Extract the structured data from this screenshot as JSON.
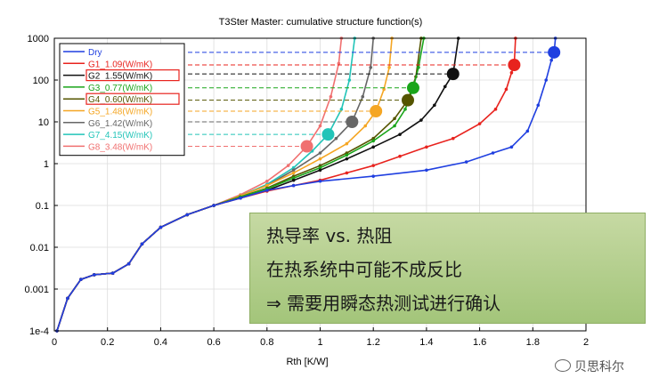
{
  "chart_data": {
    "type": "line",
    "title": "T3Ster Master: cumulative structure function(s)",
    "xlabel": "Rth  [K/W]",
    "ylabel": "",
    "xlim": [
      0,
      2
    ],
    "ylim": [
      0.0001,
      1000
    ],
    "yscale": "log",
    "x_ticks": [
      "0",
      "0.2",
      "0.4",
      "0.6",
      "0.8",
      "1",
      "1.2",
      "1.4",
      "1.6",
      "1.8",
      "2"
    ],
    "y_ticks": [
      "1e-4",
      "0.001",
      "0.01",
      "0.1",
      "1",
      "10",
      "100",
      "1000"
    ],
    "legend_placement": "top-left",
    "series": [
      {
        "name": "Dry",
        "color": "#1f3fe0",
        "marker_value": [
          1.88,
          460
        ],
        "points": [
          [
            0.01,
            0.0001
          ],
          [
            0.05,
            0.0006
          ],
          [
            0.1,
            0.0017
          ],
          [
            0.15,
            0.0022
          ],
          [
            0.22,
            0.0024
          ],
          [
            0.28,
            0.004
          ],
          [
            0.33,
            0.012
          ],
          [
            0.4,
            0.03
          ],
          [
            0.5,
            0.06
          ],
          [
            0.6,
            0.1
          ],
          [
            0.7,
            0.15
          ],
          [
            0.8,
            0.23
          ],
          [
            0.9,
            0.3
          ],
          [
            1.0,
            0.38
          ],
          [
            1.2,
            0.5
          ],
          [
            1.4,
            0.7
          ],
          [
            1.55,
            1.1
          ],
          [
            1.65,
            1.8
          ],
          [
            1.72,
            2.5
          ],
          [
            1.78,
            6
          ],
          [
            1.82,
            25
          ],
          [
            1.85,
            100
          ],
          [
            1.87,
            300
          ],
          [
            1.88,
            460
          ],
          [
            1.885,
            1000
          ]
        ]
      },
      {
        "name": "G1_1.09(W/mK)",
        "color": "#e8231e",
        "marker_value": [
          1.73,
          230
        ],
        "points": [
          [
            0.01,
            0.0001
          ],
          [
            0.05,
            0.0006
          ],
          [
            0.1,
            0.0017
          ],
          [
            0.15,
            0.0022
          ],
          [
            0.22,
            0.0024
          ],
          [
            0.28,
            0.004
          ],
          [
            0.33,
            0.012
          ],
          [
            0.4,
            0.03
          ],
          [
            0.5,
            0.06
          ],
          [
            0.6,
            0.1
          ],
          [
            0.7,
            0.15
          ],
          [
            0.8,
            0.22
          ],
          [
            0.9,
            0.3
          ],
          [
            1.0,
            0.4
          ],
          [
            1.1,
            0.6
          ],
          [
            1.2,
            0.9
          ],
          [
            1.3,
            1.5
          ],
          [
            1.4,
            2.5
          ],
          [
            1.5,
            4
          ],
          [
            1.6,
            9
          ],
          [
            1.66,
            20
          ],
          [
            1.7,
            60
          ],
          [
            1.72,
            150
          ],
          [
            1.73,
            230
          ],
          [
            1.735,
            1000
          ]
        ]
      },
      {
        "name": "G2_1.55(W/mK)",
        "color": "#111111",
        "marker_value": [
          1.5,
          140
        ],
        "points": [
          [
            0.01,
            0.0001
          ],
          [
            0.05,
            0.0006
          ],
          [
            0.1,
            0.0017
          ],
          [
            0.15,
            0.0022
          ],
          [
            0.22,
            0.0024
          ],
          [
            0.28,
            0.004
          ],
          [
            0.33,
            0.012
          ],
          [
            0.4,
            0.03
          ],
          [
            0.5,
            0.06
          ],
          [
            0.6,
            0.1
          ],
          [
            0.7,
            0.15
          ],
          [
            0.8,
            0.23
          ],
          [
            0.9,
            0.4
          ],
          [
            1.0,
            0.7
          ],
          [
            1.1,
            1.3
          ],
          [
            1.2,
            2.5
          ],
          [
            1.3,
            5
          ],
          [
            1.38,
            11
          ],
          [
            1.43,
            25
          ],
          [
            1.47,
            70
          ],
          [
            1.5,
            140
          ],
          [
            1.52,
            1000
          ]
        ]
      },
      {
        "name": "G3_0.77(W/mK)",
        "color": "#1aa51a",
        "marker_value": [
          1.35,
          65
        ],
        "points": [
          [
            0.01,
            0.0001
          ],
          [
            0.05,
            0.0006
          ],
          [
            0.1,
            0.0017
          ],
          [
            0.15,
            0.0022
          ],
          [
            0.22,
            0.0024
          ],
          [
            0.28,
            0.004
          ],
          [
            0.33,
            0.012
          ],
          [
            0.4,
            0.03
          ],
          [
            0.5,
            0.06
          ],
          [
            0.6,
            0.1
          ],
          [
            0.7,
            0.16
          ],
          [
            0.8,
            0.25
          ],
          [
            0.9,
            0.45
          ],
          [
            1.0,
            0.8
          ],
          [
            1.1,
            1.6
          ],
          [
            1.2,
            3.5
          ],
          [
            1.28,
            8
          ],
          [
            1.32,
            20
          ],
          [
            1.35,
            65
          ],
          [
            1.37,
            200
          ],
          [
            1.39,
            1000
          ]
        ]
      },
      {
        "name": "G4_0.60(W/mK)",
        "color": "#555500",
        "marker_value": [
          1.33,
          33
        ],
        "points": [
          [
            0.01,
            0.0001
          ],
          [
            0.05,
            0.0006
          ],
          [
            0.1,
            0.0017
          ],
          [
            0.15,
            0.0022
          ],
          [
            0.22,
            0.0024
          ],
          [
            0.28,
            0.004
          ],
          [
            0.33,
            0.012
          ],
          [
            0.4,
            0.03
          ],
          [
            0.5,
            0.06
          ],
          [
            0.6,
            0.1
          ],
          [
            0.7,
            0.16
          ],
          [
            0.8,
            0.26
          ],
          [
            0.9,
            0.5
          ],
          [
            1.0,
            0.9
          ],
          [
            1.1,
            1.8
          ],
          [
            1.2,
            4
          ],
          [
            1.28,
            12
          ],
          [
            1.33,
            33
          ],
          [
            1.36,
            120
          ],
          [
            1.38,
            1000
          ]
        ]
      },
      {
        "name": "G5_1.48(W/mK)",
        "color": "#f5a623",
        "marker_value": [
          1.21,
          18
        ],
        "points": [
          [
            0.01,
            0.0001
          ],
          [
            0.05,
            0.0006
          ],
          [
            0.1,
            0.0017
          ],
          [
            0.15,
            0.0022
          ],
          [
            0.22,
            0.0024
          ],
          [
            0.28,
            0.004
          ],
          [
            0.33,
            0.012
          ],
          [
            0.4,
            0.03
          ],
          [
            0.5,
            0.06
          ],
          [
            0.6,
            0.1
          ],
          [
            0.7,
            0.17
          ],
          [
            0.8,
            0.3
          ],
          [
            0.9,
            0.6
          ],
          [
            1.0,
            1.3
          ],
          [
            1.1,
            3
          ],
          [
            1.17,
            8
          ],
          [
            1.21,
            18
          ],
          [
            1.24,
            60
          ],
          [
            1.26,
            200
          ],
          [
            1.27,
            1000
          ]
        ]
      },
      {
        "name": "G6_1.42(W/mK)",
        "color": "#666666",
        "marker_value": [
          1.12,
          10
        ],
        "points": [
          [
            0.01,
            0.0001
          ],
          [
            0.05,
            0.0006
          ],
          [
            0.1,
            0.0017
          ],
          [
            0.15,
            0.0022
          ],
          [
            0.22,
            0.0024
          ],
          [
            0.28,
            0.004
          ],
          [
            0.33,
            0.012
          ],
          [
            0.4,
            0.03
          ],
          [
            0.5,
            0.06
          ],
          [
            0.6,
            0.1
          ],
          [
            0.7,
            0.17
          ],
          [
            0.8,
            0.3
          ],
          [
            0.9,
            0.7
          ],
          [
            1.0,
            1.8
          ],
          [
            1.06,
            4
          ],
          [
            1.12,
            10
          ],
          [
            1.16,
            40
          ],
          [
            1.19,
            200
          ],
          [
            1.2,
            1000
          ]
        ]
      },
      {
        "name": "G7_4.15(W/mK)",
        "color": "#22c4b8",
        "marker_value": [
          1.03,
          5
        ],
        "points": [
          [
            0.01,
            0.0001
          ],
          [
            0.05,
            0.0006
          ],
          [
            0.1,
            0.0017
          ],
          [
            0.15,
            0.0022
          ],
          [
            0.22,
            0.0024
          ],
          [
            0.28,
            0.004
          ],
          [
            0.33,
            0.012
          ],
          [
            0.4,
            0.03
          ],
          [
            0.5,
            0.06
          ],
          [
            0.6,
            0.1
          ],
          [
            0.7,
            0.17
          ],
          [
            0.8,
            0.32
          ],
          [
            0.9,
            0.8
          ],
          [
            0.97,
            2
          ],
          [
            1.03,
            5
          ],
          [
            1.08,
            20
          ],
          [
            1.11,
            100
          ],
          [
            1.13,
            1000
          ]
        ]
      },
      {
        "name": "G8_3.48(W/mK)",
        "color": "#f07070",
        "marker_value": [
          0.95,
          2.6
        ],
        "points": [
          [
            0.01,
            0.0001
          ],
          [
            0.05,
            0.0006
          ],
          [
            0.1,
            0.0017
          ],
          [
            0.15,
            0.0022
          ],
          [
            0.22,
            0.0024
          ],
          [
            0.28,
            0.004
          ],
          [
            0.33,
            0.012
          ],
          [
            0.4,
            0.03
          ],
          [
            0.5,
            0.06
          ],
          [
            0.6,
            0.1
          ],
          [
            0.7,
            0.18
          ],
          [
            0.8,
            0.38
          ],
          [
            0.88,
            0.9
          ],
          [
            0.95,
            2.6
          ],
          [
            1.0,
            8
          ],
          [
            1.04,
            40
          ],
          [
            1.07,
            250
          ],
          [
            1.08,
            1000
          ]
        ]
      }
    ],
    "boxed_legend_entries": [
      "G2_1.55(W/mK)",
      "G4_0.60(W/mK)"
    ]
  },
  "callout": {
    "line1": "热导率 vs. 热阻",
    "line2": "在热系统中可能不成反比",
    "line3": "⇒ 需要用瞬态热测试进行确认"
  },
  "watermark": {
    "icon": "wechat-icon",
    "text": "贝思科尔"
  }
}
